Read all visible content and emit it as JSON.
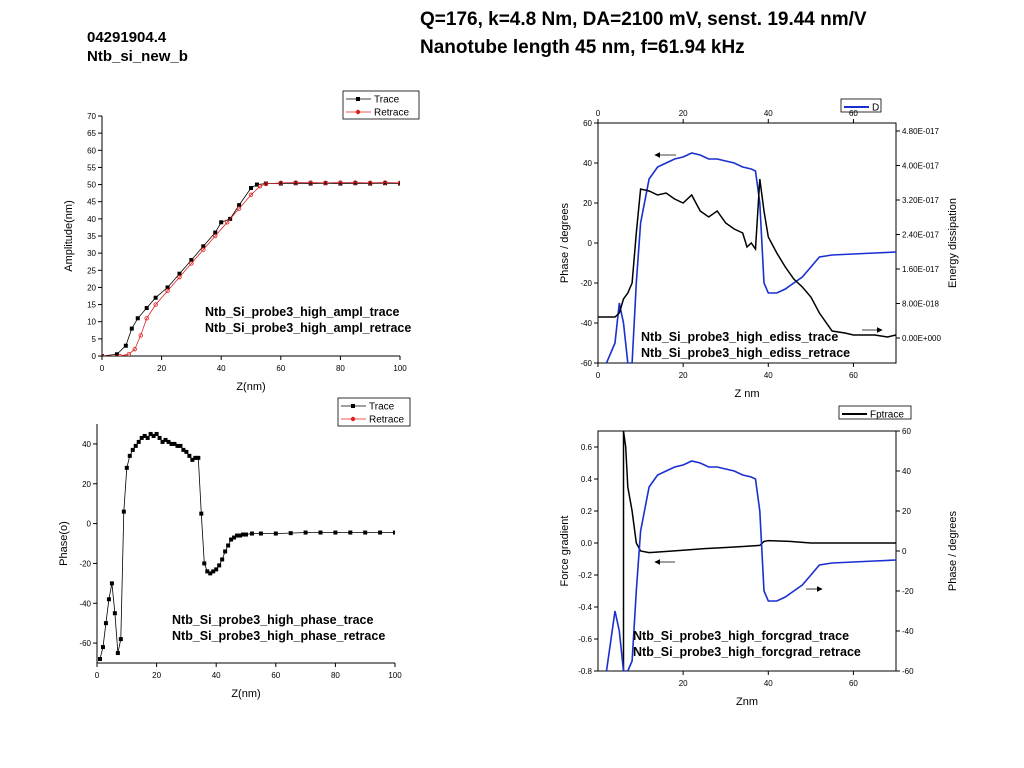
{
  "header": {
    "sample_id": "04291904.4",
    "sample_name": "Ntb_si_new_b",
    "title_line1": "Q=176, k=4.8 Nm, DA=2100 mV, senst. 19.44 nm/V",
    "title_line2": "Nanotube length 45 nm, f=61.94 kHz"
  },
  "colors": {
    "trace": "#000000",
    "retrace_red": "#e02020",
    "phase_blue": "#1a2fd0"
  },
  "chart_data": [
    {
      "id": "ampl",
      "type": "line",
      "xlabel": "Z(nm)",
      "ylabel": "Amplitude(nm)",
      "xlim": [
        0,
        100
      ],
      "ylim": [
        0,
        70
      ],
      "xticks": [
        "0",
        "20",
        "40",
        "60",
        "80",
        "100"
      ],
      "yticks": [
        "0",
        "5",
        "10",
        "15",
        "20",
        "25",
        "30",
        "35",
        "40",
        "45",
        "50",
        "55",
        "60",
        "65",
        "70"
      ],
      "legend": [
        "Trace",
        "Retrace"
      ],
      "legend_position": "top-right",
      "annotations": [
        "Ntb_Si_probe3_high_ampl_trace",
        "Ntb_Si_probe3_high_ampl_retrace"
      ],
      "series": [
        {
          "name": "Trace",
          "color": "#000000",
          "marker": "square",
          "x": [
            0,
            5,
            8,
            10,
            12,
            15,
            18,
            22,
            26,
            30,
            34,
            38,
            40,
            43,
            46,
            50,
            52,
            55,
            60,
            65,
            70,
            75,
            80,
            85,
            90,
            95,
            100
          ],
          "y": [
            0,
            0.5,
            3,
            8,
            11,
            14,
            17,
            20,
            24,
            28,
            32,
            36,
            39,
            40,
            44,
            49,
            50,
            50.3,
            50.3,
            50.4,
            50.3,
            50.4,
            50.3,
            50.4,
            50.3,
            50.4,
            50.3
          ]
        },
        {
          "name": "Retrace",
          "color": "#e02020",
          "marker": "circle",
          "x": [
            0,
            6,
            9,
            11,
            13,
            15,
            18,
            22,
            26,
            30,
            34,
            38,
            42,
            46,
            50,
            53,
            55,
            60,
            65,
            70,
            75,
            80,
            85,
            90,
            95,
            100
          ],
          "y": [
            0,
            0,
            0.5,
            2,
            6,
            11,
            15,
            19,
            23,
            27,
            31,
            35,
            39,
            43,
            47,
            49.5,
            50.2,
            50.5,
            50.6,
            50.6,
            50.5,
            50.6,
            50.6,
            50.5,
            50.6,
            50.5
          ]
        }
      ]
    },
    {
      "id": "ediss",
      "type": "line",
      "xlabel": "Z nm",
      "ylabel": "Phase / degrees",
      "y2label": "Energy dissipation",
      "xlim": [
        0,
        70
      ],
      "ylim": [
        -60,
        60
      ],
      "xticks": [
        "0",
        "20",
        "40",
        "60"
      ],
      "top_xticks": [
        "0",
        "20",
        "40",
        "60"
      ],
      "yticks": [
        "-60",
        "-40",
        "-20",
        "0",
        "20",
        "40",
        "60"
      ],
      "y2ticks": [
        "0.00E+000",
        "8.00E-018",
        "1.60E-017",
        "2.40E-017",
        "3.20E-017",
        "4.00E-017",
        "4.80E-017"
      ],
      "legend": [
        "D"
      ],
      "legend_position": "top-right",
      "annotations": [
        "Ntb_Si_probe3_high_ediss_trace",
        "Ntb_Si_probe3_high_ediss_retrace"
      ],
      "series": [
        {
          "name": "D",
          "color": "#1a2fd0",
          "axis": "left",
          "x": [
            2,
            4,
            5,
            6,
            7,
            8,
            9,
            10,
            12,
            14,
            16,
            18,
            20,
            22,
            24,
            26,
            28,
            30,
            32,
            34,
            36,
            37,
            38,
            39,
            40,
            42,
            44,
            46,
            48,
            50,
            52,
            55,
            60,
            65,
            70
          ],
          "y": [
            -60,
            -50,
            -30,
            -40,
            -60,
            -60,
            -20,
            10,
            32,
            38,
            40,
            42,
            43,
            45,
            44,
            42,
            42,
            41,
            40,
            38,
            37,
            36,
            20,
            -20,
            -25,
            -25,
            -23,
            -20,
            -17,
            -12,
            -7,
            -6,
            -5.5,
            -5,
            -4.5
          ]
        },
        {
          "color": "#000000",
          "axis": "left",
          "x": [
            0,
            2,
            4,
            5,
            6,
            7,
            8,
            9,
            10,
            12,
            14,
            16,
            18,
            20,
            22,
            24,
            26,
            28,
            30,
            32,
            34,
            35,
            36,
            37,
            38,
            39,
            40,
            42,
            44,
            46,
            48,
            50,
            52,
            55,
            58,
            60,
            62,
            65,
            68,
            70
          ],
          "y": [
            -37,
            -37,
            -37,
            -35,
            -28,
            -25,
            -20,
            5,
            27,
            26,
            24,
            25,
            22,
            20,
            24,
            16,
            13,
            16,
            10,
            7,
            5,
            -2,
            0,
            -3,
            32,
            16,
            3,
            -5,
            -12,
            -18,
            -22,
            -27,
            -35,
            -44,
            -45,
            -46,
            -46,
            -46,
            -47,
            -46
          ]
        }
      ]
    },
    {
      "id": "phase",
      "type": "line",
      "xlabel": "Z(nm)",
      "ylabel": "Phase(o)",
      "xlim": [
        0,
        100
      ],
      "ylim": [
        -70,
        50
      ],
      "xticks": [
        "0",
        "20",
        "40",
        "60",
        "80",
        "100"
      ],
      "yticks": [
        "-60",
        "-40",
        "-20",
        "0",
        "20",
        "40"
      ],
      "legend": [
        "Trace",
        "Retrace"
      ],
      "legend_position": "top-right",
      "annotations": [
        "Ntb_Si_probe3_high_phase_trace",
        "Ntb_Si_probe3_high_phase_retrace"
      ],
      "series": [
        {
          "name": "Trace",
          "color": "#000000",
          "marker": "square",
          "x": [
            1,
            2,
            3,
            4,
            5,
            6,
            7,
            8,
            9,
            10,
            11,
            12,
            13,
            14,
            15,
            16,
            17,
            18,
            19,
            20,
            21,
            22,
            23,
            24,
            25,
            26,
            27,
            28,
            29,
            30,
            31,
            32,
            33,
            34,
            35,
            36,
            37,
            38,
            39,
            40,
            41,
            42,
            43,
            44,
            45,
            46,
            47,
            48,
            49,
            50,
            52,
            55,
            60,
            65,
            70,
            75,
            80,
            85,
            90,
            95,
            100
          ],
          "y": [
            -68,
            -62,
            -50,
            -38,
            -30,
            -45,
            -65,
            -58,
            6,
            28,
            34,
            37,
            39,
            41,
            43,
            44,
            43,
            45,
            44,
            45,
            43,
            41,
            42,
            41,
            40,
            40,
            39,
            39,
            37,
            36,
            34,
            32,
            33,
            33,
            5,
            -20,
            -24,
            -25,
            -24,
            -23,
            -21,
            -18,
            -14,
            -11,
            -8,
            -7,
            -6,
            -6,
            -5.5,
            -5.5,
            -5,
            -5,
            -5,
            -4.8,
            -4.5,
            -4.5,
            -4.5,
            -4.5,
            -4.5,
            -4.5,
            -4.5
          ]
        }
      ]
    },
    {
      "id": "forcgrad",
      "type": "line",
      "xlabel": "Znm",
      "ylabel": "Force gradient",
      "y2label": "Phase / degrees",
      "xlim": [
        0,
        70
      ],
      "ylim": [
        -0.8,
        0.7
      ],
      "y2lim": [
        -60,
        60
      ],
      "xticks": [
        "20",
        "40",
        "60"
      ],
      "yticks": [
        "-0.8",
        "-0.6",
        "-0.4",
        "-0.2",
        "0.0",
        "0.2",
        "0.4",
        "0.6"
      ],
      "y2ticks": [
        "-60",
        "-40",
        "-20",
        "0",
        "20",
        "40",
        "60"
      ],
      "legend": [
        "Fptrace"
      ],
      "legend_position": "top-right",
      "annotations": [
        "Ntb_Si_probe3_high_forcgrad_trace",
        "Ntb_Si_probe3_high_forcgrad_retrace"
      ],
      "series": [
        {
          "name": "Fptrace",
          "color": "#000000",
          "axis": "left",
          "x": [
            6,
            6,
            6.5,
            7,
            8,
            9,
            10,
            12,
            15,
            20,
            25,
            30,
            35,
            38,
            39,
            40,
            45,
            50,
            55,
            60,
            65,
            70
          ],
          "y": [
            -0.8,
            0.7,
            0.6,
            0.35,
            0.2,
            0.0,
            -0.05,
            -0.06,
            -0.055,
            -0.045,
            -0.035,
            -0.028,
            -0.02,
            -0.015,
            0.01,
            0.015,
            0.01,
            0.0,
            0.0,
            0.0,
            0.0,
            0.0
          ]
        },
        {
          "color": "#1a2fd0",
          "axis": "right",
          "x": [
            2,
            4,
            5,
            6,
            7,
            8,
            9,
            10,
            12,
            14,
            16,
            18,
            20,
            22,
            24,
            26,
            28,
            30,
            32,
            34,
            36,
            37,
            38,
            39,
            40,
            42,
            44,
            46,
            48,
            50,
            52,
            55,
            60,
            65,
            70
          ],
          "y": [
            -60,
            -30,
            -40,
            -60,
            -60,
            -55,
            -20,
            10,
            32,
            38,
            40,
            42,
            43,
            45,
            44,
            42,
            42,
            41,
            40,
            38,
            37,
            36,
            20,
            -20,
            -25,
            -25,
            -23,
            -20,
            -17,
            -12,
            -7,
            -6,
            -5.5,
            -5,
            -4.5
          ]
        }
      ]
    }
  ]
}
